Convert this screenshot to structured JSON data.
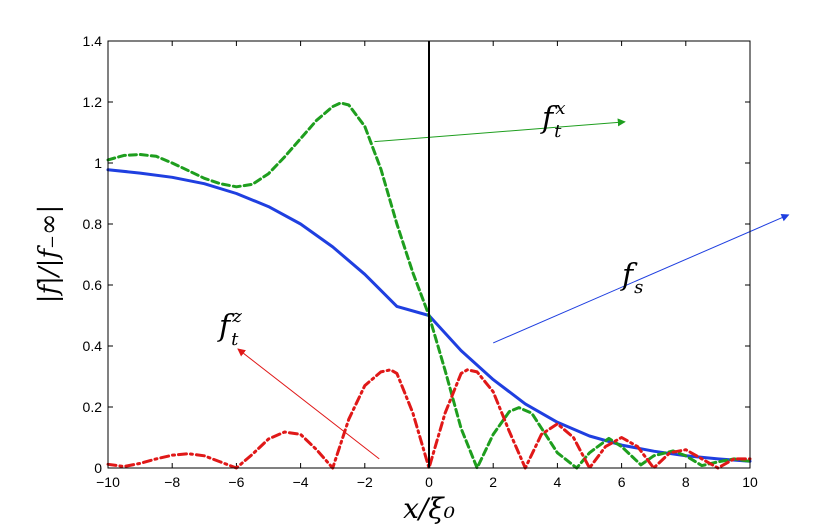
{
  "chart_data": {
    "type": "line",
    "xlabel": "x/ξ₀",
    "ylabel": "|f|/|f₋∞|",
    "xlim": [
      -10,
      10
    ],
    "ylim": [
      0,
      1.4
    ],
    "x_ticks": [
      -10,
      -8,
      -6,
      -4,
      -2,
      0,
      2,
      4,
      6,
      8,
      10
    ],
    "y_ticks": [
      0,
      0.2,
      0.4,
      0.6,
      0.8,
      1,
      1.2,
      1.4
    ],
    "x_tick_labels": [
      "−10",
      "−8",
      "−6",
      "−4",
      "−2",
      "0",
      "2",
      "4",
      "6",
      "8",
      "10"
    ],
    "y_tick_labels": [
      "0",
      "0.2",
      "0.4",
      "0.6",
      "0.8",
      "1",
      "1.2",
      "1.4"
    ],
    "grid": false,
    "vertical_line_x": 0,
    "series": [
      {
        "key": "fs",
        "label": "f_s",
        "color": "#1f3fe0",
        "style": "solid",
        "points": [
          [
            -10,
            0.978
          ],
          [
            -9,
            0.967
          ],
          [
            -8,
            0.953
          ],
          [
            -7,
            0.932
          ],
          [
            -6,
            0.9
          ],
          [
            -5,
            0.857
          ],
          [
            -4,
            0.8
          ],
          [
            -3,
            0.725
          ],
          [
            -2,
            0.635
          ],
          [
            -1,
            0.53
          ],
          [
            0,
            0.5
          ],
          [
            1,
            0.385
          ],
          [
            2,
            0.29
          ],
          [
            3,
            0.21
          ],
          [
            4,
            0.15
          ],
          [
            5,
            0.105
          ],
          [
            6,
            0.075
          ],
          [
            7,
            0.055
          ],
          [
            8,
            0.04
          ],
          [
            9,
            0.03
          ],
          [
            10,
            0.022
          ]
        ]
      },
      {
        "key": "ftx",
        "label": "f_t^x",
        "color": "#1e9e1e",
        "style": "dashed",
        "points": [
          [
            -10,
            1.01
          ],
          [
            -9.5,
            1.025
          ],
          [
            -9,
            1.028
          ],
          [
            -8.5,
            1.022
          ],
          [
            -8,
            1.0
          ],
          [
            -7.5,
            0.975
          ],
          [
            -7,
            0.95
          ],
          [
            -6.5,
            0.932
          ],
          [
            -6,
            0.922
          ],
          [
            -5.5,
            0.93
          ],
          [
            -5,
            0.965
          ],
          [
            -4.5,
            1.02
          ],
          [
            -4,
            1.08
          ],
          [
            -3.5,
            1.14
          ],
          [
            -3,
            1.185
          ],
          [
            -2.75,
            1.197
          ],
          [
            -2.5,
            1.19
          ],
          [
            -2,
            1.12
          ],
          [
            -1.5,
            0.98
          ],
          [
            -1,
            0.8
          ],
          [
            -0.5,
            0.64
          ],
          [
            0,
            0.5
          ],
          [
            0.5,
            0.32
          ],
          [
            1,
            0.13
          ],
          [
            1.5,
            0.0
          ],
          [
            2,
            0.11
          ],
          [
            2.5,
            0.185
          ],
          [
            2.8,
            0.198
          ],
          [
            3.2,
            0.18
          ],
          [
            4,
            0.05
          ],
          [
            4.6,
            0.0
          ],
          [
            5,
            0.05
          ],
          [
            5.6,
            0.097
          ],
          [
            6,
            0.07
          ],
          [
            6.6,
            0.01
          ],
          [
            7,
            0.04
          ],
          [
            7.6,
            0.056
          ],
          [
            8,
            0.04
          ],
          [
            8.5,
            0.008
          ],
          [
            9,
            0.02
          ],
          [
            9.5,
            0.03
          ],
          [
            10,
            0.022
          ]
        ]
      },
      {
        "key": "ftz",
        "label": "f_t^z",
        "color": "#e01818",
        "style": "dashdot",
        "points": [
          [
            -10,
            0.012
          ],
          [
            -9.5,
            0.005
          ],
          [
            -9,
            0.015
          ],
          [
            -8.5,
            0.03
          ],
          [
            -8,
            0.042
          ],
          [
            -7.5,
            0.047
          ],
          [
            -7,
            0.04
          ],
          [
            -6.5,
            0.02
          ],
          [
            -6,
            0.0
          ],
          [
            -5.5,
            0.045
          ],
          [
            -5,
            0.095
          ],
          [
            -4.5,
            0.118
          ],
          [
            -4,
            0.11
          ],
          [
            -3.5,
            0.06
          ],
          [
            -3,
            0.0
          ],
          [
            -2.5,
            0.16
          ],
          [
            -2,
            0.27
          ],
          [
            -1.5,
            0.315
          ],
          [
            -1.2,
            0.322
          ],
          [
            -1,
            0.31
          ],
          [
            -0.5,
            0.18
          ],
          [
            0,
            0.0
          ],
          [
            0.5,
            0.18
          ],
          [
            1,
            0.31
          ],
          [
            1.2,
            0.322
          ],
          [
            1.5,
            0.315
          ],
          [
            2,
            0.25
          ],
          [
            2.5,
            0.12
          ],
          [
            3,
            0.0
          ],
          [
            3.5,
            0.11
          ],
          [
            4,
            0.145
          ],
          [
            4.5,
            0.1
          ],
          [
            5,
            0.0
          ],
          [
            5.5,
            0.07
          ],
          [
            6,
            0.1
          ],
          [
            6.5,
            0.07
          ],
          [
            7,
            0.0
          ],
          [
            7.5,
            0.05
          ],
          [
            8,
            0.06
          ],
          [
            8.5,
            0.03
          ],
          [
            9,
            0.0
          ],
          [
            9.5,
            0.03
          ],
          [
            10,
            0.03
          ]
        ]
      }
    ],
    "annotations": [
      {
        "series": "ftx",
        "color": "#1e9e1e",
        "from": [
          -1.7,
          1.07
        ],
        "to": [
          6.1,
          1.135
        ]
      },
      {
        "series": "fs",
        "color": "#1f3fe0",
        "from": [
          2.0,
          0.41
        ],
        "to": [
          11.2,
          0.83
        ]
      },
      {
        "series": "ftz",
        "color": "#e01818",
        "from": [
          -1.55,
          0.03
        ],
        "to": [
          -5.95,
          0.39
        ]
      }
    ]
  }
}
